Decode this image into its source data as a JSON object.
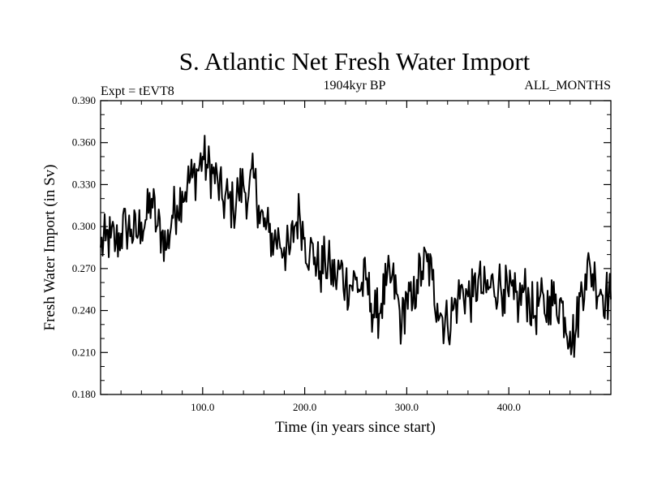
{
  "chart_data": {
    "type": "line",
    "title": "S. Atlantic Net Fresh Water Import",
    "left_header": "Expt = tEVT8",
    "center_header": "1904kyr BP",
    "right_header": "ALL_MONTHS",
    "xlabel": "Time (in years since start)",
    "ylabel": "Fresh Water Import (in Sv)",
    "xlim": [
      0,
      500
    ],
    "ylim": [
      0.18,
      0.39
    ],
    "x_ticks": [
      100,
      200,
      300,
      400
    ],
    "x_tick_labels": [
      "100.0",
      "200.0",
      "300.0",
      "400.0"
    ],
    "y_ticks": [
      0.18,
      0.21,
      0.24,
      0.27,
      0.3,
      0.33,
      0.36,
      0.39
    ],
    "y_tick_labels": [
      "0.180",
      "0.210",
      "0.240",
      "0.270",
      "0.300",
      "0.330",
      "0.360",
      "0.390"
    ],
    "grid": false,
    "line_color": "#000000",
    "series": [
      {
        "name": "Fresh Water Import",
        "x": [
          0,
          5,
          10,
          15,
          20,
          25,
          30,
          35,
          40,
          45,
          50,
          55,
          60,
          65,
          70,
          75,
          80,
          85,
          90,
          95,
          100,
          105,
          110,
          115,
          120,
          125,
          130,
          135,
          140,
          145,
          150,
          155,
          160,
          165,
          170,
          175,
          180,
          185,
          190,
          195,
          200,
          205,
          210,
          215,
          220,
          225,
          230,
          235,
          240,
          245,
          250,
          255,
          260,
          265,
          270,
          275,
          280,
          285,
          290,
          295,
          300,
          305,
          310,
          315,
          320,
          325,
          330,
          335,
          340,
          345,
          350,
          355,
          360,
          365,
          370,
          375,
          380,
          385,
          390,
          395,
          400,
          405,
          410,
          415,
          420,
          425,
          430,
          435,
          440,
          445,
          450,
          455,
          460,
          465,
          470,
          475,
          480,
          485,
          490,
          495,
          500
        ],
        "values": [
          0.285,
          0.29,
          0.292,
          0.288,
          0.295,
          0.3,
          0.298,
          0.293,
          0.303,
          0.305,
          0.32,
          0.3,
          0.296,
          0.285,
          0.308,
          0.315,
          0.325,
          0.33,
          0.335,
          0.34,
          0.35,
          0.342,
          0.338,
          0.33,
          0.318,
          0.32,
          0.313,
          0.325,
          0.33,
          0.322,
          0.335,
          0.315,
          0.3,
          0.296,
          0.29,
          0.292,
          0.285,
          0.28,
          0.3,
          0.31,
          0.292,
          0.282,
          0.278,
          0.268,
          0.275,
          0.27,
          0.262,
          0.27,
          0.26,
          0.258,
          0.262,
          0.255,
          0.262,
          0.245,
          0.235,
          0.245,
          0.258,
          0.262,
          0.252,
          0.228,
          0.252,
          0.24,
          0.262,
          0.268,
          0.275,
          0.262,
          0.245,
          0.235,
          0.23,
          0.24,
          0.248,
          0.255,
          0.25,
          0.25,
          0.262,
          0.252,
          0.255,
          0.258,
          0.26,
          0.255,
          0.25,
          0.248,
          0.246,
          0.255,
          0.248,
          0.236,
          0.248,
          0.238,
          0.25,
          0.245,
          0.248,
          0.235,
          0.225,
          0.222,
          0.25,
          0.266,
          0.27,
          0.262,
          0.255,
          0.252,
          0.248
        ]
      }
    ]
  }
}
